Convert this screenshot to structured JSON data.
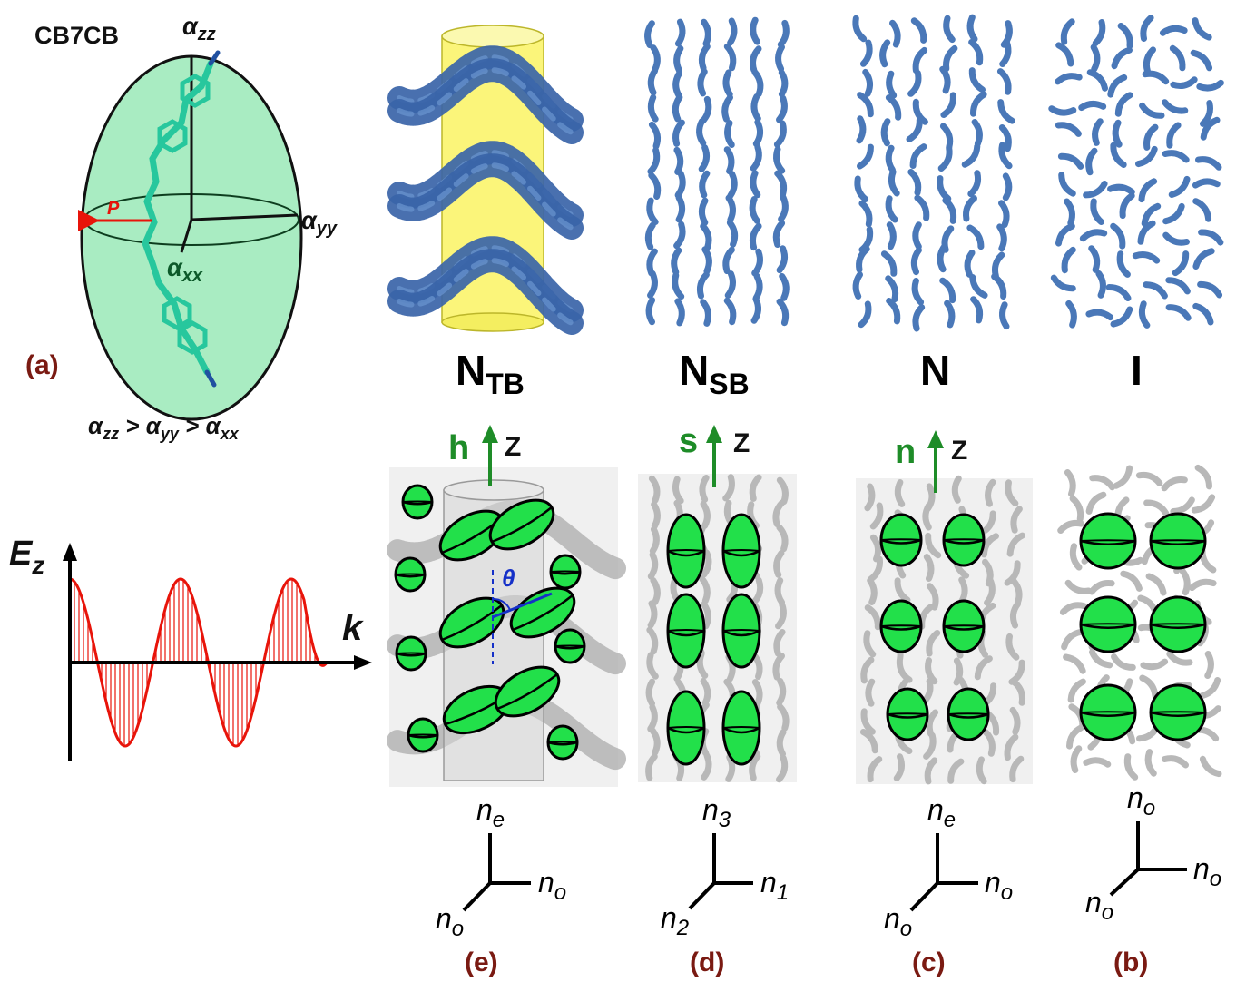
{
  "panel_a": {
    "molecule_name": "CB7CB",
    "axis_zz_main": "α",
    "axis_zz_sub": "zz",
    "axis_yy_main": "α",
    "axis_yy_sub": "yy",
    "axis_xx_main": "α",
    "axis_xx_sub": "xx",
    "dipole_label": "P",
    "panel_label": "(a)",
    "relation": {
      "a1": "α",
      "s1": "zz",
      "gt1": " > ",
      "a2": "α",
      "s2": "yy",
      "gt2": " > ",
      "a3": "α",
      "s3": "xx"
    }
  },
  "phases": [
    {
      "main": "N",
      "sub": "TB"
    },
    {
      "main": "N",
      "sub": "SB"
    },
    {
      "main": "N",
      "sub": ""
    },
    {
      "main": "I",
      "sub": ""
    }
  ],
  "directors": [
    {
      "symbol": "h",
      "axis": "Z"
    },
    {
      "symbol": "s",
      "axis": "Z"
    },
    {
      "symbol": "n",
      "axis": "Z"
    }
  ],
  "angle_label": "θ",
  "field_plot": {
    "ylabel_main": "E",
    "ylabel_sub": "z",
    "xlabel": "k"
  },
  "index_axes": [
    {
      "top_main": "n",
      "top_sub": "e",
      "right_main": "n",
      "right_sub": "o",
      "left_main": "n",
      "left_sub": "o"
    },
    {
      "top_main": "n",
      "top_sub": "3",
      "right_main": "n",
      "right_sub": "1",
      "left_main": "n",
      "left_sub": "2"
    },
    {
      "top_main": "n",
      "top_sub": "e",
      "right_main": "n",
      "right_sub": "o",
      "left_main": "n",
      "left_sub": "o"
    },
    {
      "top_main": "n",
      "top_sub": "o",
      "right_main": "n",
      "right_sub": "o",
      "left_main": "n",
      "left_sub": "o"
    }
  ],
  "bottom_labels": [
    "(e)",
    "(d)",
    "(c)",
    "(b)"
  ],
  "colors": {
    "ellipsoid_fill": "#a9ecc2",
    "molecule": "#3ddbb3",
    "rod_blue": "#4a78b8",
    "cylinder_yellow": "#fbf57a",
    "green_ellipsoid": "#22e04a",
    "director_green": "#1e8c28",
    "label_darkred": "#7a1a12",
    "wave_red": "#e8140a",
    "angle_blue": "#1530c8"
  }
}
